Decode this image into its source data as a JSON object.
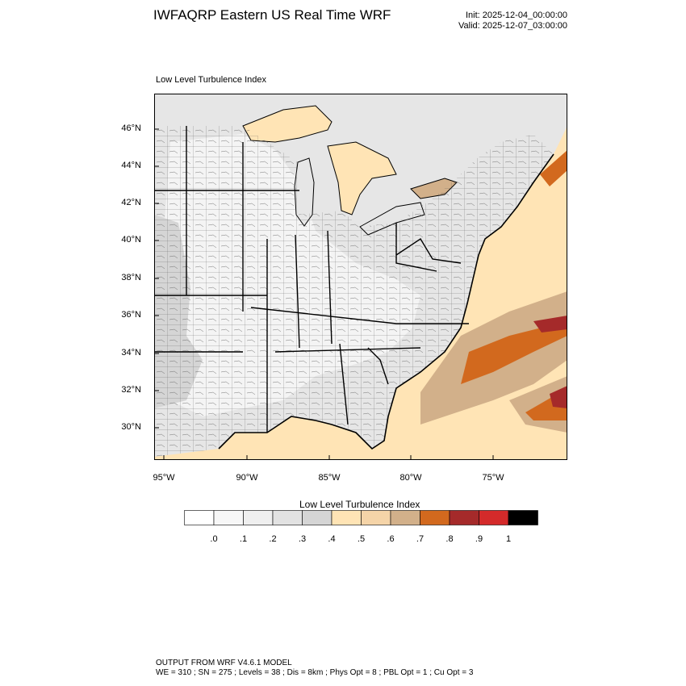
{
  "header": {
    "title": "IWFAQRP Eastern US Real Time WRF",
    "init": "Init: 2025-12-04_00:00:00",
    "valid": "Valid: 2025-12-07_03:00:00"
  },
  "map": {
    "panel_title": "Low Level Turbulence Index",
    "lat_ticks": [
      "46°N",
      "44°N",
      "42°N",
      "40°N",
      "38°N",
      "36°N",
      "34°N",
      "32°N",
      "30°N"
    ],
    "lon_ticks": [
      "95°W",
      "90°W",
      "85°W",
      "80°W",
      "75°W"
    ],
    "land_color": "#e6e6e6",
    "water_color": "#ffffff"
  },
  "colorbar": {
    "title": "Low Level Turbulence Index",
    "colors": [
      "#ffffff",
      "#f7f7f7",
      "#efefef",
      "#e2e2e2",
      "#d5d5d5",
      "#ffe4b5",
      "#f5d4a8",
      "#d2b08a",
      "#d2691e",
      "#a52a2a",
      "#d42a2a",
      "#000000"
    ],
    "labels": [
      ".0",
      ".1",
      ".2",
      ".3",
      ".4",
      ".5",
      ".6",
      ".7",
      ".8",
      ".9",
      "1"
    ]
  },
  "footer": {
    "line1": "OUTPUT FROM WRF V4.6.1 MODEL",
    "line2": "WE = 310 ; SN = 275 ; Levels = 38 ; Dis = 8km ; Phys Opt = 8 ; PBL Opt = 1 ; Cu Opt = 3"
  }
}
